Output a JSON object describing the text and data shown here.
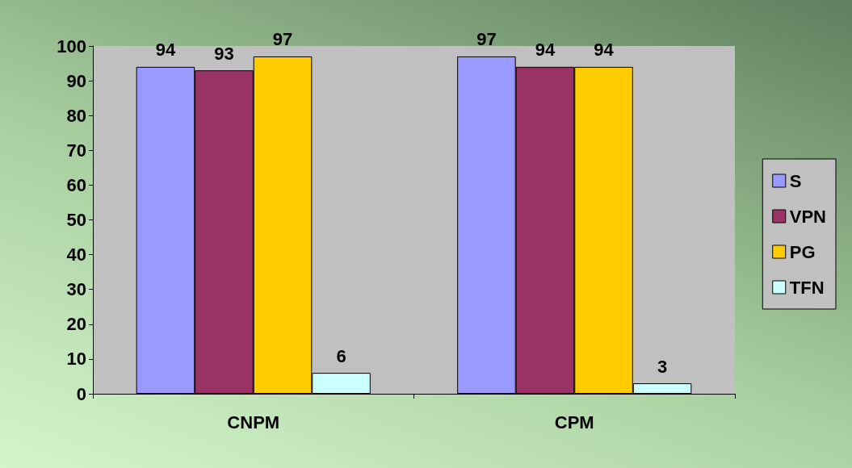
{
  "chart_data": {
    "type": "bar",
    "categories": [
      "CNPM",
      "CPM"
    ],
    "series": [
      {
        "name": "S",
        "color": "#9999ff",
        "values": [
          94,
          97
        ]
      },
      {
        "name": "VPN",
        "color": "#993366",
        "values": [
          93,
          94
        ]
      },
      {
        "name": "PG",
        "color": "#ffcc00",
        "values": [
          97,
          94
        ]
      },
      {
        "name": "TFN",
        "color": "#ccffff",
        "values": [
          6,
          3
        ]
      }
    ],
    "ylim": [
      0,
      100
    ],
    "yticks": [
      0,
      10,
      20,
      30,
      40,
      50,
      60,
      70,
      80,
      90,
      100
    ],
    "grid": false,
    "legend": "right",
    "data_labels": true
  }
}
